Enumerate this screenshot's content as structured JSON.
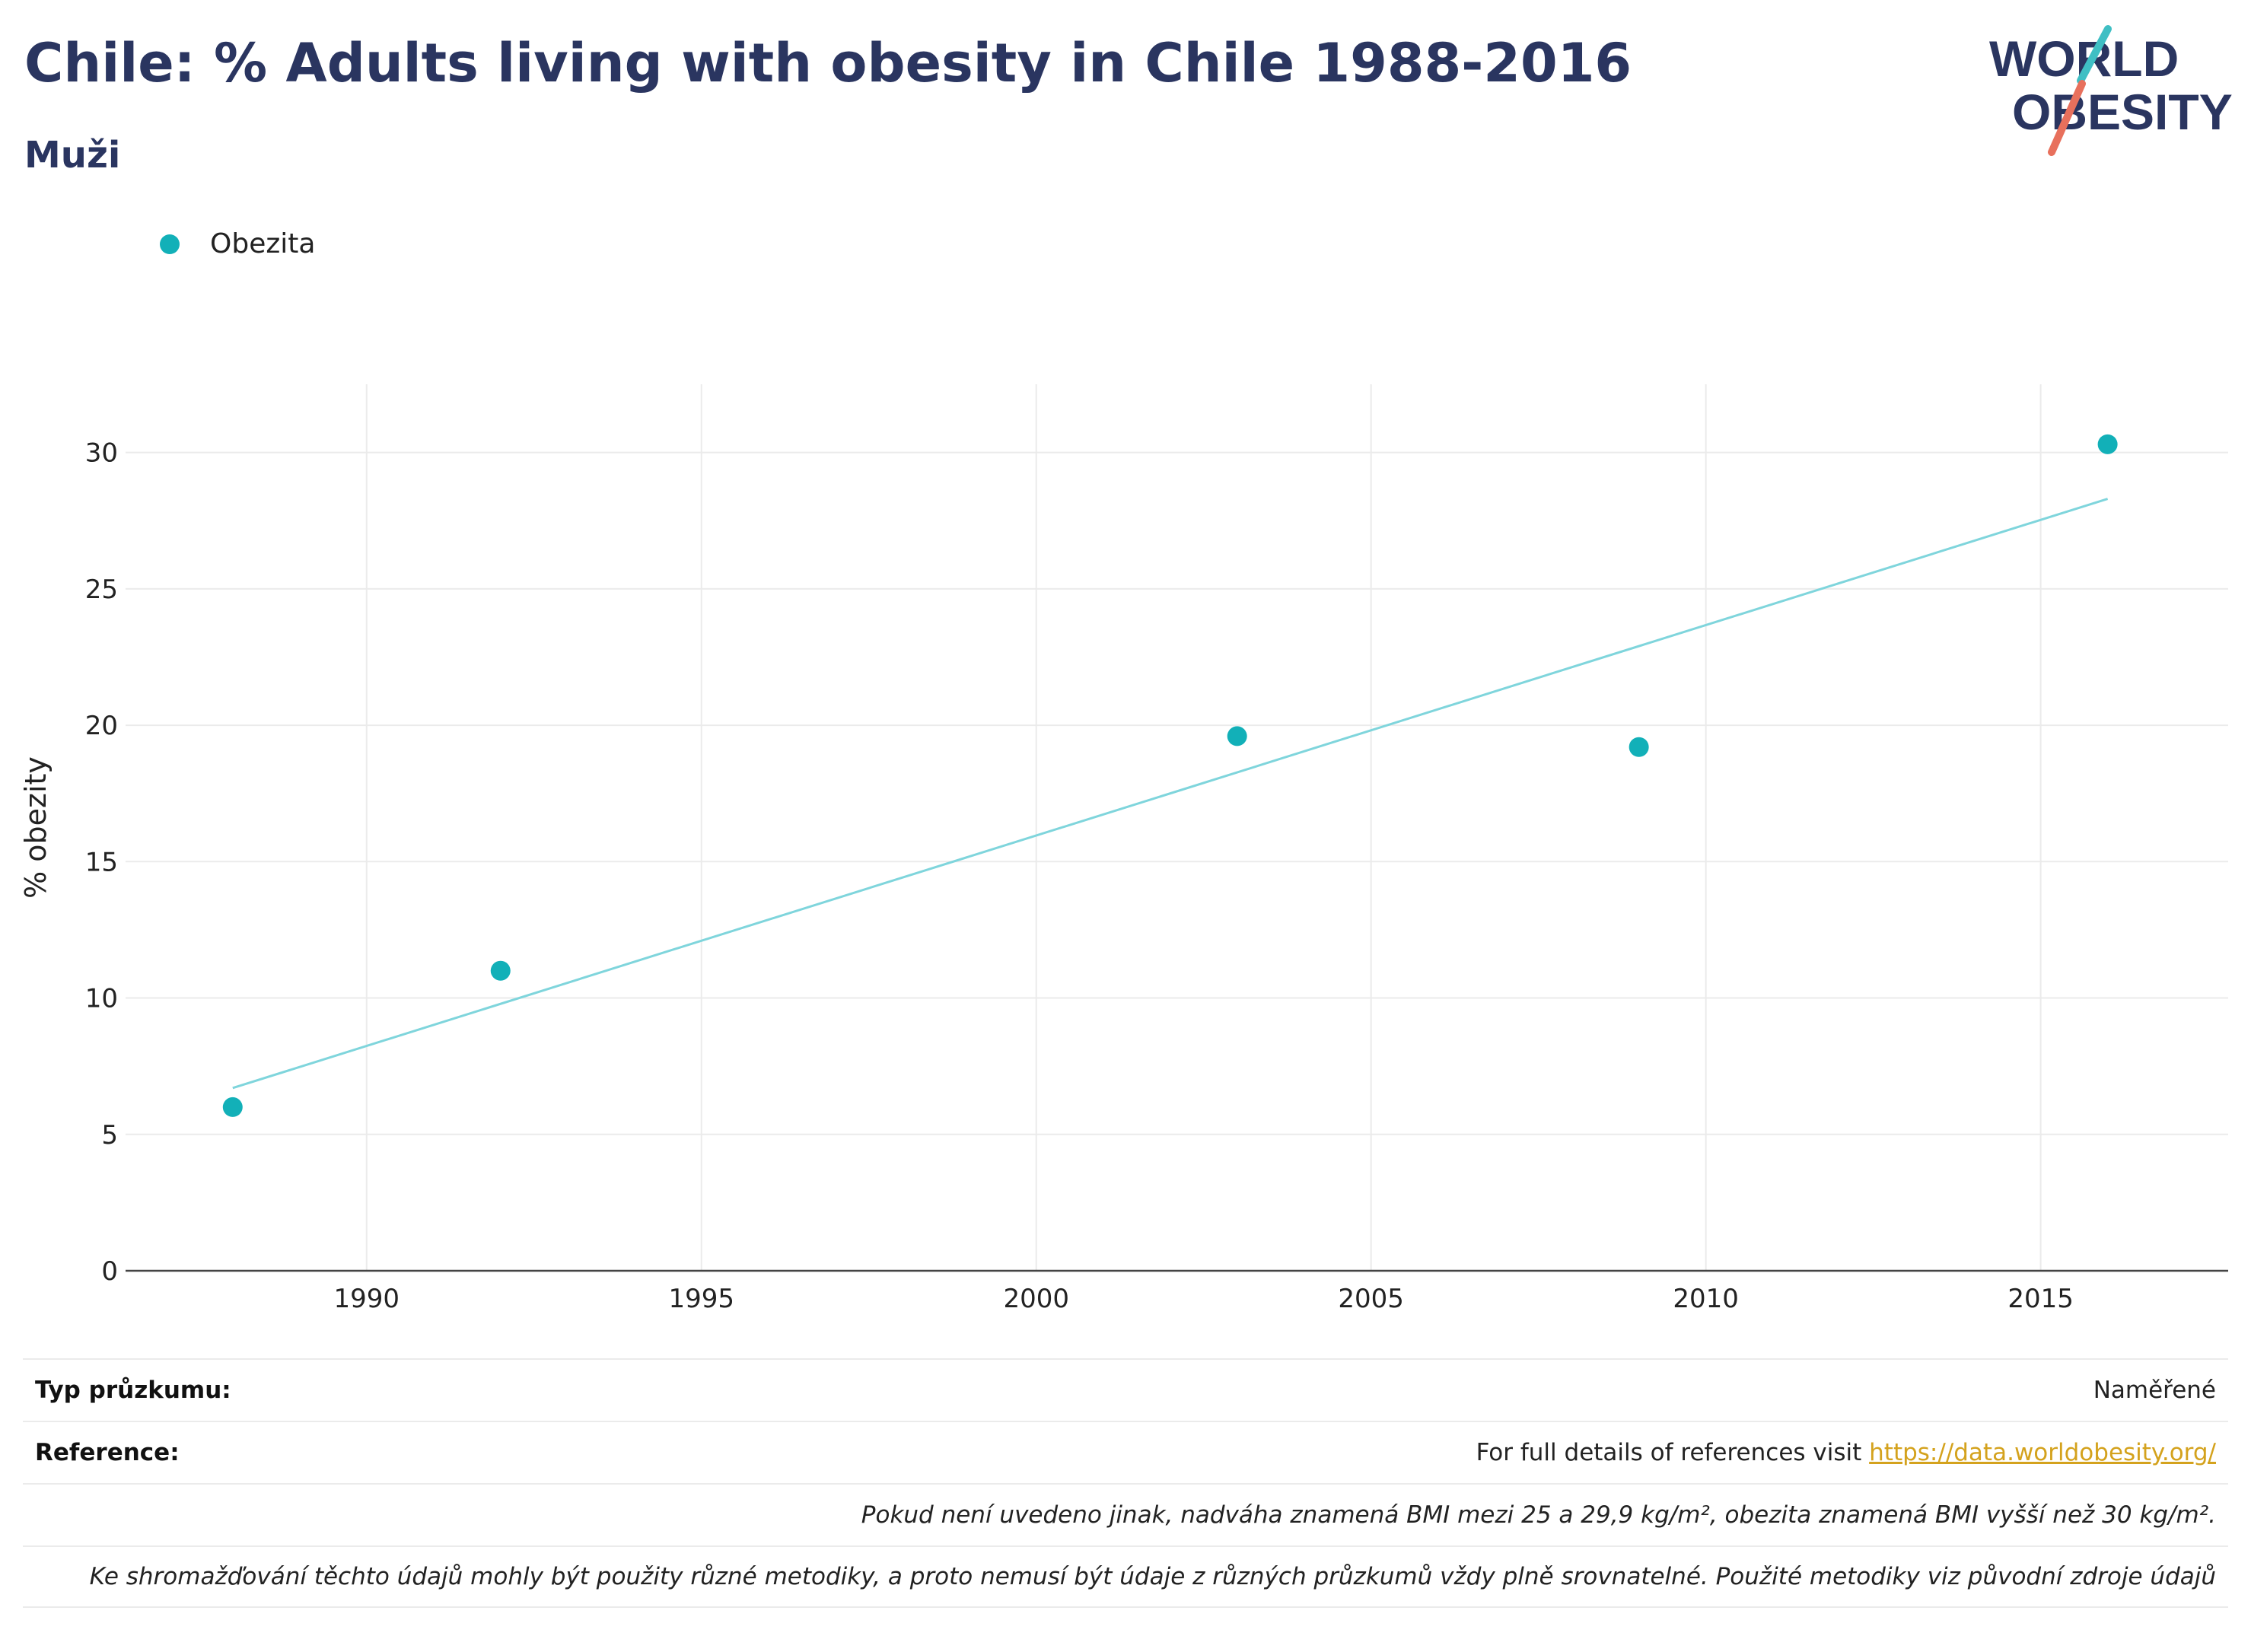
{
  "header": {
    "title": "Chile: % Adults living with obesity in Chile 1988-2016",
    "subtitle": "Muži"
  },
  "logo": {
    "line1": "WORLD",
    "line2": "OBESITY"
  },
  "colors": {
    "title": "#2a3560",
    "series": "#12b0b8",
    "trend": "#7fd5dc",
    "logo_teal": "#3fbfc4",
    "logo_coral": "#e8705c",
    "link": "#d4a21d"
  },
  "chart_data": {
    "type": "scatter",
    "title": "",
    "xlabel": "",
    "ylabel": "% obezity",
    "xlim": [
      1986.4,
      2017.8
    ],
    "ylim": [
      0,
      32.5
    ],
    "xticks": [
      1990,
      1995,
      2000,
      2005,
      2010,
      2015
    ],
    "yticks": [
      0,
      5,
      10,
      15,
      20,
      25,
      30
    ],
    "grid": true,
    "legend_position": "top-left",
    "series": [
      {
        "name": "Obezita",
        "x": [
          1988,
          1992,
          2003,
          2009,
          2016
        ],
        "y": [
          6.0,
          11.0,
          19.6,
          19.2,
          30.3
        ]
      }
    ],
    "trendline": {
      "x": [
        1988,
        2016
      ],
      "y": [
        6.7,
        28.3
      ]
    }
  },
  "footer": {
    "survey_label": "Typ průzkumu:",
    "survey_value": "Naměřené",
    "reference_label": "Reference:",
    "reference_text": "For full details of references visit ",
    "reference_link": "https://data.worldobesity.org/",
    "note1": "Pokud není uvedeno jinak, nadváha znamená BMI mezi 25 a 29,9 kg/m², obezita znamená BMI vyšší než 30 kg/m².",
    "note2": "Ke shromažďování těchto údajů mohly být použity různé metodiky, a proto nemusí být údaje z různých průzkumů vždy plně srovnatelné. Použité metodiky viz původní zdroje údajů"
  }
}
